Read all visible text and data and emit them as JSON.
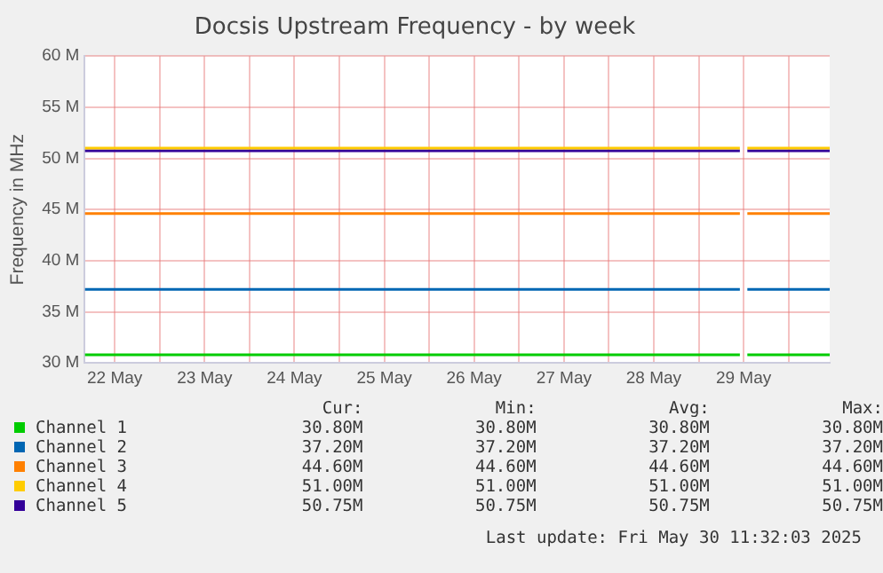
{
  "chart_data": {
    "type": "line",
    "title": "Docsis Upstream Frequency - by week",
    "ylabel": "Frequency in MHz",
    "x": [
      "2025-05-22T04:00",
      "2025-05-29T11:00",
      "2025-05-29T12:00",
      "2025-05-29T13:00",
      "2025-05-30T11:00"
    ],
    "xlim": [
      "2025-05-22T04:00",
      "2025-05-30T11:00"
    ],
    "xticks": [
      {
        "value": "2025-05-22T12:00",
        "label": "22 May"
      },
      {
        "value": "2025-05-23T00:00",
        "label": null
      },
      {
        "value": "2025-05-23T12:00",
        "label": "23 May"
      },
      {
        "value": "2025-05-24T00:00",
        "label": null
      },
      {
        "value": "2025-05-24T12:00",
        "label": "24 May"
      },
      {
        "value": "2025-05-25T00:00",
        "label": null
      },
      {
        "value": "2025-05-25T12:00",
        "label": "25 May"
      },
      {
        "value": "2025-05-26T00:00",
        "label": null
      },
      {
        "value": "2025-05-26T12:00",
        "label": "26 May"
      },
      {
        "value": "2025-05-27T00:00",
        "label": null
      },
      {
        "value": "2025-05-27T12:00",
        "label": "27 May"
      },
      {
        "value": "2025-05-28T00:00",
        "label": null
      },
      {
        "value": "2025-05-28T12:00",
        "label": "28 May"
      },
      {
        "value": "2025-05-29T00:00",
        "label": null
      },
      {
        "value": "2025-05-29T12:00",
        "label": "29 May"
      },
      {
        "value": "2025-05-30T00:00",
        "label": null
      }
    ],
    "ylim": [
      30,
      60
    ],
    "yticks": [
      {
        "value": 30,
        "label": "30 M"
      },
      {
        "value": 35,
        "label": "35 M"
      },
      {
        "value": 40,
        "label": "40 M"
      },
      {
        "value": 45,
        "label": "45 M"
      },
      {
        "value": 50,
        "label": "50 M"
      },
      {
        "value": 55,
        "label": "55 M"
      },
      {
        "value": 60,
        "label": "60 M"
      }
    ],
    "series": [
      {
        "name": "Channel 1",
        "color": "#00cc00",
        "values": [
          30.8,
          30.8,
          null,
          30.8,
          30.8
        ]
      },
      {
        "name": "Channel 2",
        "color": "#0066b3",
        "values": [
          37.2,
          37.2,
          null,
          37.2,
          37.2
        ]
      },
      {
        "name": "Channel 3",
        "color": "#ff8000",
        "values": [
          44.6,
          44.6,
          null,
          44.6,
          44.6
        ]
      },
      {
        "name": "Channel 4",
        "color": "#ffcc00",
        "values": [
          51.0,
          51.0,
          null,
          51.0,
          51.0
        ]
      },
      {
        "name": "Channel 5",
        "color": "#330099",
        "values": [
          50.75,
          50.75,
          null,
          50.75,
          50.75
        ]
      }
    ],
    "annotations": [
      "Cur:",
      "Min:",
      "Avg:",
      "Max:",
      "30.80M",
      "30.80M",
      "30.80M",
      "30.80M",
      "37.20M",
      "37.20M",
      "37.20M",
      "37.20M",
      "44.60M",
      "44.60M",
      "44.60M",
      "44.60M",
      "51.00M",
      "51.00M",
      "51.00M",
      "51.00M",
      "50.75M",
      "50.75M",
      "50.75M",
      "50.75M",
      "Last update: Fri May 30 11:32:03 2025"
    ],
    "grid": true,
    "legend": "bottom",
    "marker": "none",
    "line_style": "solid"
  }
}
